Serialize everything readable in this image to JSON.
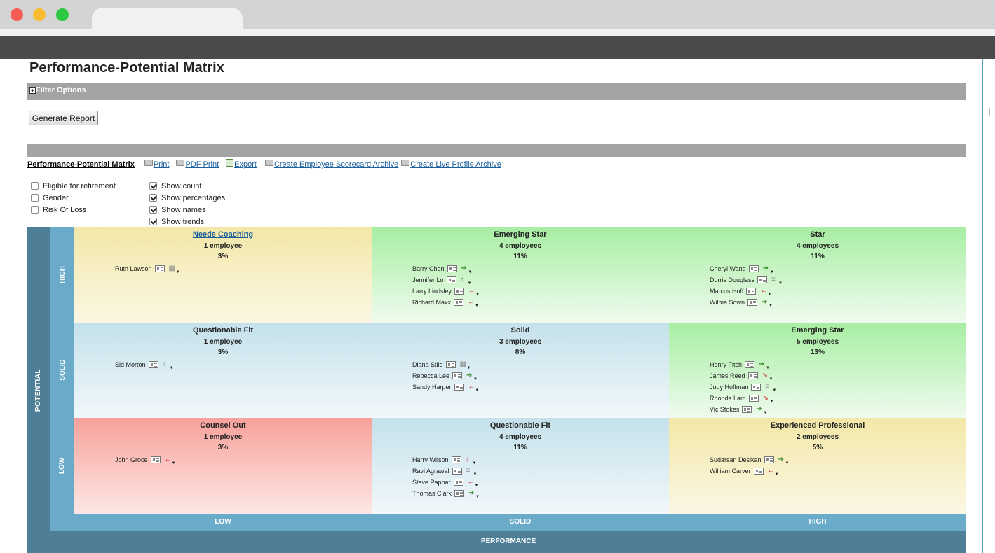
{
  "page": {
    "title": "Performance-Potential Matrix",
    "filter_label": "Filter Options",
    "generate_label": "Generate Report"
  },
  "toolbar": {
    "title": "Performance-Potential Matrix",
    "print": "Print",
    "pdf_print": "PDF Print",
    "export": "Export",
    "scorecard_archive": "Create Employee Scorecard Archive",
    "live_profile_archive": "Create Live Profile Archive"
  },
  "options_left": [
    {
      "label": "Eligible for retirement",
      "checked": false
    },
    {
      "label": "Gender",
      "checked": false
    },
    {
      "label": "Risk Of Loss",
      "checked": false
    }
  ],
  "options_right": [
    {
      "label": "Show count",
      "checked": true
    },
    {
      "label": "Show percentages",
      "checked": true
    },
    {
      "label": "Show names",
      "checked": true
    },
    {
      "label": "Show trends",
      "checked": true
    }
  ],
  "axis": {
    "potential": "POTENTIAL",
    "performance": "PERFORMANCE",
    "rows": [
      "HIGH",
      "SOLID",
      "LOW"
    ],
    "cols": [
      "LOW",
      "SOLID",
      "HIGH"
    ]
  },
  "cells": [
    {
      "title": "Needs Coaching",
      "count": "1 employee",
      "pct": "3%",
      "color": "#f3e8a7",
      "employees": [
        {
          "name": "Ruth Lawson",
          "trend": "grid-icon"
        }
      ]
    },
    {
      "title": "Emerging Star",
      "count": "4 employees",
      "pct": "11%",
      "color": "#a7eea2",
      "employees": [
        {
          "name": "Barry Chen",
          "trend": "arrow-right-icon"
        },
        {
          "name": "Jennifer Lo",
          "trend": "arrow-up-icon"
        },
        {
          "name": "Larry Lindsley",
          "trend": "arrow-left-icon"
        },
        {
          "name": "Richard Maxx",
          "trend": "arrow-left-icon"
        }
      ]
    },
    {
      "title": "Star",
      "count": "4 employees",
      "pct": "11%",
      "color": "#a7eea2",
      "employees": [
        {
          "name": "Cheryl Wang",
          "trend": "arrow-right-icon"
        },
        {
          "name": "Dorris Douglass",
          "trend": "list-icon"
        },
        {
          "name": "Marcus Hoff",
          "trend": "arrow-left-icon"
        },
        {
          "name": "Wilma Sown",
          "trend": "arrow-right-icon"
        }
      ]
    },
    {
      "title": "Questionable Fit",
      "count": "1 employee",
      "pct": "3%",
      "color": "#c4e1eb",
      "employees": [
        {
          "name": "Sid Morton",
          "trend": "arrow-up-icon"
        }
      ]
    },
    {
      "title": "Solid",
      "count": "3 employees",
      "pct": "8%",
      "color": "#c4e1eb",
      "employees": [
        {
          "name": "Diana Stile",
          "trend": "grid-icon"
        },
        {
          "name": "Rebecca Lee",
          "trend": "arrow-right-icon"
        },
        {
          "name": "Sandy Harper",
          "trend": "arrow-left-icon"
        }
      ]
    },
    {
      "title": "Emerging Star",
      "count": "5 employees",
      "pct": "13%",
      "color": "#a7eea2",
      "employees": [
        {
          "name": "Henry Fitch",
          "trend": "arrow-right-icon"
        },
        {
          "name": "James Reed",
          "trend": "arrow-diagonal-icon"
        },
        {
          "name": "Judy Hoffman",
          "trend": "list-icon"
        },
        {
          "name": "Rhonda Lam",
          "trend": "arrow-diagonal-icon"
        },
        {
          "name": "Vic Stokes",
          "trend": "arrow-right-icon"
        }
      ]
    },
    {
      "title": "Counsel Out",
      "count": "1 employee",
      "pct": "3%",
      "color": "#f8a19a",
      "employees": [
        {
          "name": "John Groce",
          "trend": "arrow-left-icon"
        }
      ]
    },
    {
      "title": "Questionable Fit",
      "count": "4 employees",
      "pct": "11%",
      "color": "#c4e1eb",
      "employees": [
        {
          "name": "Harry Wilson",
          "trend": "arrow-down-icon"
        },
        {
          "name": "Ravi Agrawal",
          "trend": "list-icon"
        },
        {
          "name": "Steve Pappar",
          "trend": "arrow-left-icon"
        },
        {
          "name": "Thomas Clark",
          "trend": "arrow-right-icon"
        }
      ]
    },
    {
      "title": "Experienced Professional",
      "count": "2 employees",
      "pct": "5%",
      "color": "#f3e8a7",
      "employees": [
        {
          "name": "Sudarsan Desikan",
          "trend": "arrow-right-icon"
        },
        {
          "name": "William Carver",
          "trend": "arrow-left-icon"
        }
      ]
    }
  ]
}
